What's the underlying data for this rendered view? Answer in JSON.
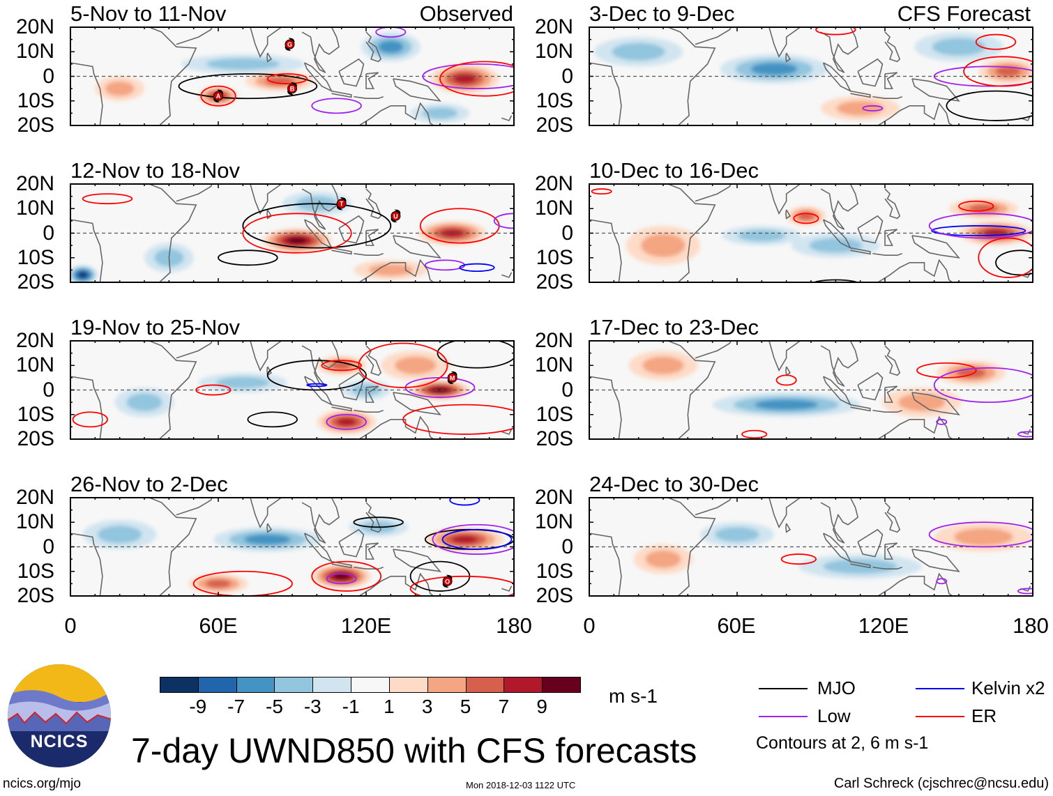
{
  "title": "7-day UWND850 with CFS forecasts",
  "footer": {
    "url": "ncics.org/mjo",
    "timestamp": "Mon 2018-12-03 1122 UTC",
    "credit": "Carl Schreck (cjschrec@ncsu.edu)",
    "logo_text": "NCICS"
  },
  "column_labels": {
    "observed": "Observed",
    "forecast": "CFS Forecast"
  },
  "legend": {
    "items": [
      {
        "label": "MJO",
        "color": "#000000"
      },
      {
        "label": "Low",
        "color": "#a020f0"
      },
      {
        "label": "Kelvin x2",
        "color": "#0000ff"
      },
      {
        "label": "ER",
        "color": "#ff0000"
      }
    ],
    "note": "Contours at 2, 6 m s-1"
  },
  "chart_data": {
    "type": "heatmap",
    "variable": "UWND850 7-day mean anomaly",
    "units": "m s-1",
    "lat_range": [
      -20,
      20
    ],
    "lon_range": [
      0,
      180
    ],
    "y_ticks": [
      "20N",
      "10N",
      "0",
      "10S",
      "20S"
    ],
    "x_ticks": [
      "0",
      "60E",
      "120E",
      "180"
    ],
    "colorbar": {
      "labels": [
        "-9",
        "-7",
        "-5",
        "-3",
        "-1",
        "1",
        "3",
        "5",
        "7",
        "9"
      ],
      "colors": [
        "#0b3262",
        "#2166ac",
        "#4393c3",
        "#92c5de",
        "#d1e5f0",
        "#f7f7f7",
        "#fddbc7",
        "#f4a582",
        "#d6604d",
        "#b2182b",
        "#67001f"
      ],
      "units": "m s-1"
    },
    "panels": [
      {
        "title": "5-Nov to 11-Nov",
        "column": "observed",
        "anomalies": [
          [
            60,
            -8,
            8,
            4,
            7
          ],
          [
            85,
            -2,
            14,
            4,
            5
          ],
          [
            130,
            12,
            12,
            6,
            -5
          ],
          [
            160,
            -1,
            14,
            6,
            7
          ],
          [
            70,
            5,
            25,
            4,
            -3
          ],
          [
            20,
            -5,
            10,
            5,
            3
          ],
          [
            150,
            -15,
            12,
            4,
            -3
          ]
        ],
        "contours": [
          [
            "MJO",
            72,
            -4,
            28,
            5
          ],
          [
            "ER",
            60,
            -8,
            7,
            4
          ],
          [
            "ER",
            88,
            -1,
            8,
            2
          ],
          [
            "Low",
            108,
            -12,
            10,
            3
          ],
          [
            "Low",
            165,
            0,
            22,
            5
          ],
          [
            "ER",
            168,
            -1,
            18,
            7
          ],
          [
            "Low",
            130,
            18,
            6,
            2
          ]
        ],
        "storms": [
          [
            "G",
            89,
            13
          ],
          [
            "A",
            60,
            -8
          ],
          [
            "B",
            90,
            -5
          ]
        ]
      },
      {
        "title": "12-Nov to 18-Nov",
        "column": "observed",
        "anomalies": [
          [
            92,
            -3,
            14,
            5,
            9
          ],
          [
            155,
            0,
            14,
            5,
            7
          ],
          [
            5,
            -17,
            6,
            4,
            -9
          ],
          [
            100,
            12,
            14,
            5,
            -3
          ],
          [
            40,
            -10,
            10,
            6,
            -3
          ],
          [
            130,
            -15,
            15,
            4,
            3
          ]
        ],
        "contours": [
          [
            "MJO",
            100,
            3,
            30,
            9
          ],
          [
            "MJO",
            72,
            -10,
            12,
            3
          ],
          [
            "ER",
            92,
            0,
            22,
            8
          ],
          [
            "ER",
            158,
            3,
            16,
            7
          ],
          [
            "Low",
            152,
            -13,
            8,
            2
          ],
          [
            "Kelvin",
            165,
            -14,
            7,
            1.5
          ],
          [
            "ER",
            15,
            14,
            10,
            2
          ],
          [
            "Low",
            180,
            5,
            8,
            3
          ]
        ],
        "storms": [
          [
            "T",
            110,
            12
          ],
          [
            "U",
            132,
            7
          ]
        ]
      },
      {
        "title": "19-Nov to 25-Nov",
        "column": "observed",
        "anomalies": [
          [
            150,
            0,
            12,
            4,
            9
          ],
          [
            112,
            -13,
            12,
            5,
            7
          ],
          [
            110,
            10,
            10,
            4,
            5
          ],
          [
            70,
            3,
            18,
            4,
            -3
          ],
          [
            120,
            0,
            10,
            4,
            -3
          ],
          [
            140,
            10,
            14,
            6,
            3
          ],
          [
            30,
            -5,
            12,
            6,
            -3
          ]
        ],
        "contours": [
          [
            "MJO",
            100,
            6,
            20,
            6
          ],
          [
            "MJO",
            165,
            15,
            16,
            6
          ],
          [
            "MJO",
            82,
            -12,
            10,
            3
          ],
          [
            "Low",
            150,
            1,
            14,
            4
          ],
          [
            "Low",
            112,
            -13,
            8,
            3
          ],
          [
            "ER",
            58,
            0,
            7,
            2
          ],
          [
            "ER",
            8,
            -12,
            7,
            3
          ],
          [
            "ER",
            135,
            10,
            18,
            9
          ],
          [
            "Kelvin",
            100,
            2,
            4,
            0.5
          ],
          [
            "ER",
            110,
            10,
            8,
            2
          ],
          [
            "ER",
            160,
            -12,
            25,
            6
          ]
        ],
        "storms": [
          [
            "M",
            155,
            5
          ]
        ]
      },
      {
        "title": "26-Nov to 2-Dec",
        "column": "observed",
        "anomalies": [
          [
            80,
            3,
            22,
            5,
            -5
          ],
          [
            125,
            8,
            12,
            4,
            -3
          ],
          [
            110,
            -12,
            12,
            5,
            9
          ],
          [
            160,
            3,
            16,
            5,
            7
          ],
          [
            60,
            -15,
            12,
            4,
            5
          ],
          [
            20,
            5,
            15,
            6,
            -3
          ]
        ],
        "contours": [
          [
            "MJO",
            125,
            10,
            10,
            2
          ],
          [
            "MJO",
            162,
            3,
            18,
            4
          ],
          [
            "MJO",
            150,
            -12,
            12,
            6
          ],
          [
            "Low",
            110,
            -13,
            6,
            2
          ],
          [
            "Low",
            165,
            3,
            18,
            6
          ],
          [
            "Kelvin",
            165,
            3,
            14,
            4
          ],
          [
            "ER",
            160,
            -17,
            22,
            5
          ],
          [
            "ER",
            70,
            -15,
            20,
            5
          ],
          [
            "Kelvin",
            160,
            19,
            6,
            2
          ],
          [
            "ER",
            112,
            -12,
            14,
            6
          ]
        ],
        "storms": [
          [
            "O",
            153,
            -14
          ]
        ]
      },
      {
        "title": "3-Dec to 9-Dec",
        "column": "forecast",
        "anomalies": [
          [
            75,
            3,
            22,
            6,
            -5
          ],
          [
            150,
            12,
            18,
            6,
            -3
          ],
          [
            170,
            2,
            12,
            5,
            5
          ],
          [
            110,
            -13,
            16,
            5,
            3
          ],
          [
            20,
            10,
            18,
            6,
            -3
          ]
        ],
        "contours": [
          [
            "ER",
            165,
            14,
            8,
            3
          ],
          [
            "ER",
            100,
            19,
            8,
            2
          ],
          [
            "Low",
            162,
            0,
            22,
            4
          ],
          [
            "MJO",
            165,
            -12,
            20,
            6
          ],
          [
            "Low",
            115,
            -13,
            4,
            1
          ],
          [
            "ER",
            168,
            2,
            16,
            6
          ]
        ],
        "storms": []
      },
      {
        "title": "10-Dec to 16-Dec",
        "column": "forecast",
        "anomalies": [
          [
            70,
            -1,
            16,
            4,
            -3
          ],
          [
            100,
            -5,
            18,
            5,
            -3
          ],
          [
            88,
            7,
            8,
            4,
            5
          ],
          [
            165,
            0,
            15,
            5,
            7
          ],
          [
            160,
            10,
            14,
            4,
            5
          ],
          [
            30,
            -5,
            15,
            8,
            3
          ]
        ],
        "contours": [
          [
            "ER",
            88,
            6,
            5,
            2
          ],
          [
            "ER",
            157,
            11,
            7,
            2
          ],
          [
            "Kelvin",
            158,
            1,
            19,
            2
          ],
          [
            "Low",
            160,
            3,
            22,
            5
          ],
          [
            "MJO",
            175,
            -12,
            10,
            5
          ],
          [
            "ER",
            5,
            17,
            4,
            1
          ],
          [
            "ER",
            170,
            -10,
            12,
            8
          ],
          [
            "MJO",
            100,
            -21,
            10,
            2
          ]
        ],
        "storms": []
      },
      {
        "title": "17-Dec to 23-Dec",
        "column": "forecast",
        "anomalies": [
          [
            80,
            -6,
            30,
            5,
            -5
          ],
          [
            155,
            7,
            14,
            5,
            5
          ],
          [
            135,
            -5,
            16,
            6,
            3
          ],
          [
            30,
            10,
            14,
            6,
            3
          ]
        ],
        "contours": [
          [
            "ER",
            145,
            8,
            12,
            3
          ],
          [
            "ER",
            80,
            4,
            4,
            2
          ],
          [
            "Low",
            162,
            2,
            22,
            7
          ],
          [
            "ER",
            67,
            -18,
            5,
            1.5
          ],
          [
            "Low",
            143,
            -13,
            2,
            1
          ],
          [
            "Low",
            178,
            -18,
            4,
            1
          ]
        ],
        "storms": []
      },
      {
        "title": "24-Dec to 30-Dec",
        "column": "forecast",
        "anomalies": [
          [
            110,
            -8,
            25,
            5,
            -3
          ],
          [
            160,
            4,
            20,
            6,
            3
          ],
          [
            60,
            5,
            15,
            5,
            -3
          ],
          [
            30,
            -5,
            12,
            6,
            3
          ]
        ],
        "contours": [
          [
            "Low",
            160,
            5,
            22,
            5
          ],
          [
            "ER",
            85,
            -5,
            7,
            2
          ],
          [
            "Low",
            143,
            -14,
            2,
            1
          ],
          [
            "Low",
            178,
            -18,
            4,
            1
          ]
        ],
        "storms": []
      }
    ]
  }
}
